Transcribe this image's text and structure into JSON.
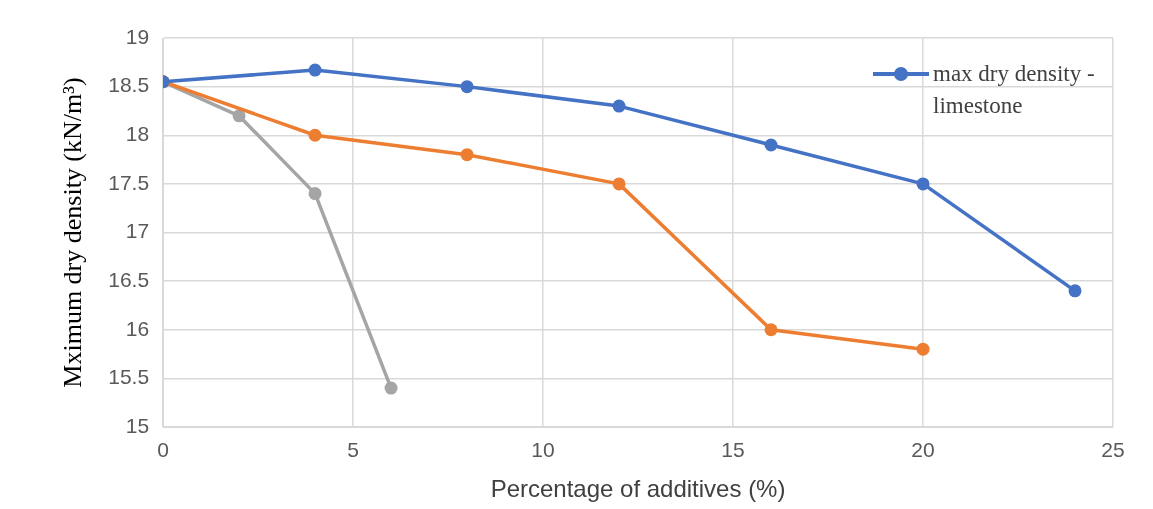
{
  "chart_data": {
    "type": "line",
    "xlabel": "Percentage of additives (%)",
    "ylabel": "Mximum dry density (kN/m³)",
    "xlim": [
      0,
      25
    ],
    "xticks": [
      0,
      5,
      10,
      15,
      20,
      25
    ],
    "ylim": [
      15,
      19
    ],
    "yticks": [
      15,
      15.5,
      16,
      16.5,
      17,
      17.5,
      18,
      18.5,
      19
    ],
    "grid": true,
    "legend": "top right",
    "marker": "circle",
    "line_style": "solid",
    "series": [
      {
        "name": "max dry density - limestone",
        "color": "#4472c4",
        "x": [
          0,
          4,
          8,
          12,
          16,
          20,
          24
        ],
        "values": [
          18.55,
          18.67,
          18.5,
          18.3,
          17.9,
          17.5,
          16.4
        ]
      },
      {
        "color": "#ed7d31",
        "x": [
          0,
          4,
          8,
          12,
          16,
          20
        ],
        "values": [
          18.55,
          18.0,
          17.8,
          17.5,
          16.0,
          15.8
        ]
      },
      {
        "color": "#a5a5a5",
        "x": [
          0,
          2,
          4,
          6
        ],
        "values": [
          18.55,
          18.2,
          17.4,
          15.4
        ]
      }
    ]
  }
}
